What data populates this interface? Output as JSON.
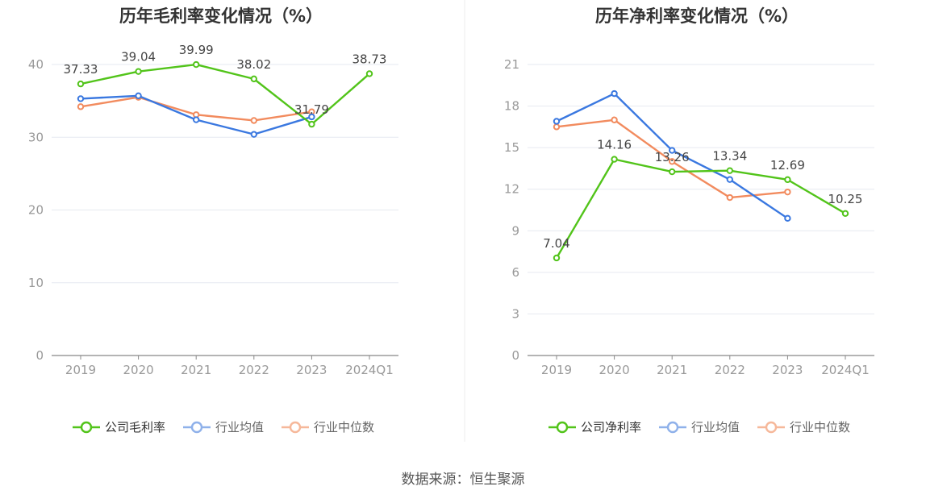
{
  "colors": {
    "company": "#52c41a",
    "industry_avg": "#3a78e0",
    "industry_median": "#f28b5e",
    "grid": "#e6e9f0",
    "axis": "#999999",
    "text": "#666666",
    "label": "#444444",
    "title": "#333333"
  },
  "source_text": "数据来源：恒生聚源",
  "chart_data": [
    {
      "type": "line",
      "title": "历年毛利率变化情况（%）",
      "categories": [
        "2019",
        "2020",
        "2021",
        "2022",
        "2023",
        "2024Q1"
      ],
      "ylim": [
        0,
        40
      ],
      "yticks": [
        0,
        10,
        20,
        30,
        40
      ],
      "grid": true,
      "legend_position": "bottom",
      "series": [
        {
          "name": "公司毛利率",
          "values": [
            37.33,
            39.04,
            39.99,
            38.02,
            31.79,
            38.73
          ],
          "data_labels": [
            "37.33",
            "39.04",
            "39.99",
            "38.02",
            "31.79",
            "38.73"
          ]
        },
        {
          "name": "行业均值",
          "values": [
            35.3,
            35.7,
            32.4,
            30.4,
            32.8,
            null
          ]
        },
        {
          "name": "行业中位数",
          "values": [
            34.2,
            35.5,
            33.1,
            32.3,
            33.5,
            null
          ]
        }
      ]
    },
    {
      "type": "line",
      "title": "历年净利率变化情况（%）",
      "categories": [
        "2019",
        "2020",
        "2021",
        "2022",
        "2023",
        "2024Q1"
      ],
      "ylim": [
        0,
        21
      ],
      "yticks": [
        0,
        3,
        6,
        9,
        12,
        15,
        18,
        21
      ],
      "grid": true,
      "legend_position": "bottom",
      "series": [
        {
          "name": "公司净利率",
          "values": [
            7.04,
            14.16,
            13.26,
            13.34,
            12.69,
            10.25
          ],
          "data_labels": [
            "7.04",
            "14.16",
            "13.26",
            "13.34",
            "12.69",
            "10.25"
          ]
        },
        {
          "name": "行业均值",
          "values": [
            16.9,
            18.9,
            14.8,
            12.7,
            9.9,
            null
          ]
        },
        {
          "name": "行业中位数",
          "values": [
            16.5,
            17.0,
            14.0,
            11.4,
            11.8,
            null
          ]
        }
      ]
    }
  ]
}
